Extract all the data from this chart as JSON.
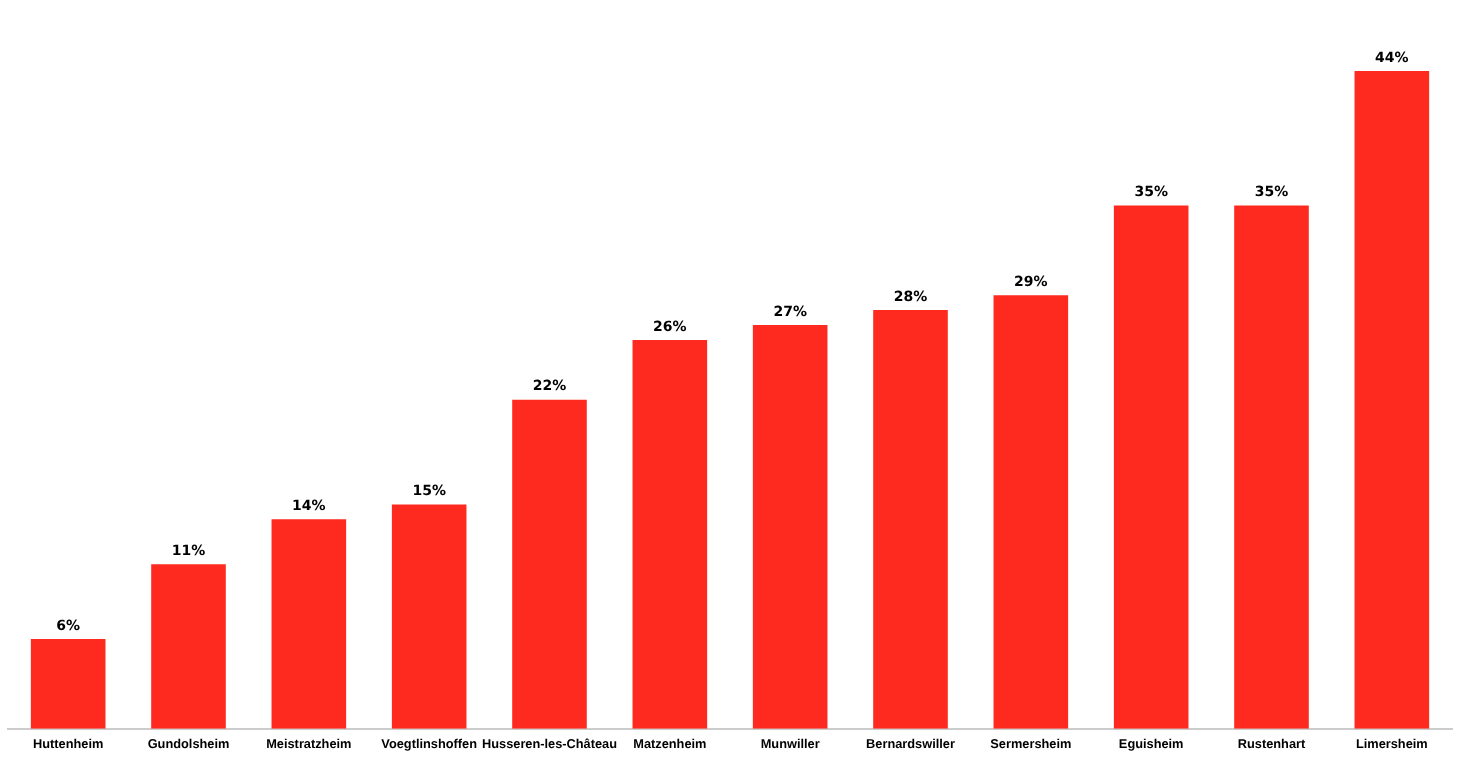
{
  "chart_data": {
    "type": "bar",
    "categories": [
      "Huttenheim",
      "Gundolsheim",
      "Meistratzheim",
      "Voegtlinshoffen",
      "Husseren-les-Château",
      "Matzenheim",
      "Munwiller",
      "Bernardswiller",
      "Sermersheim",
      "Eguisheim",
      "Rustenhart",
      "Limersheim"
    ],
    "values": [
      6,
      11,
      14,
      15,
      22,
      26,
      27,
      28,
      29,
      35,
      35,
      44
    ],
    "value_labels": [
      "6%",
      "11%",
      "14%",
      "15%",
      "22%",
      "26%",
      "27%",
      "28%",
      "29%",
      "35%",
      "35%",
      "44%"
    ],
    "color": "#ff2a1f",
    "grid": false,
    "legend": false,
    "tick_labels": "x"
  }
}
